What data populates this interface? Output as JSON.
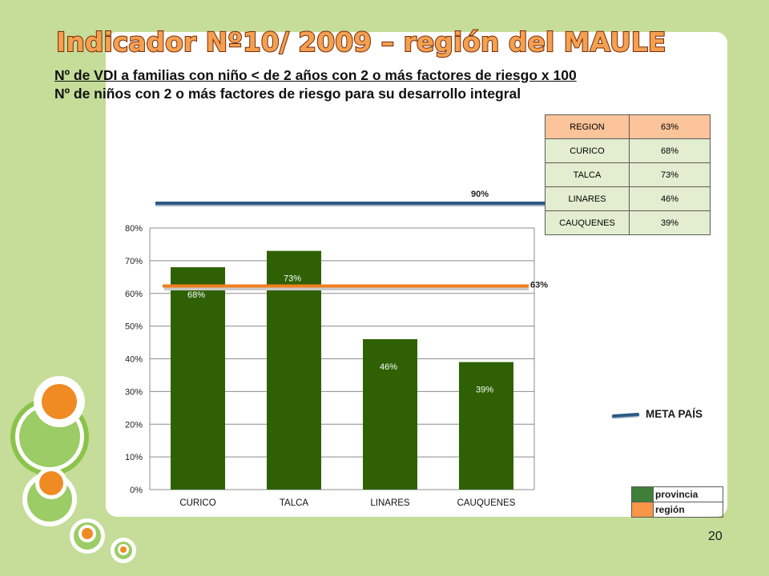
{
  "slide": {
    "title": "Indicador Nº10/ 2009 – región del MAULE",
    "subtitle_line1": "Nº de VDI a familias con niño < de 2 años con 2 o más factores de riesgo x 100",
    "subtitle_line2": "Nº de niños con 2 o más  factores de riesgo para su desarrollo integral",
    "page_number": "20"
  },
  "colors": {
    "background": "#c5dd99",
    "bar": "#2f6104",
    "region_line": "#f07f1e",
    "meta_line": "#2c5a84",
    "legend_provincia": "#3f7f3a",
    "legend_region": "#f79646",
    "title_fill": "#f3a050",
    "title_stroke": "#7a2a06"
  },
  "chart_data": {
    "type": "bar",
    "categories": [
      "CURICO",
      "TALCA",
      "LINARES",
      "CAUQUENES"
    ],
    "values": [
      68,
      73,
      46,
      39
    ],
    "value_labels": [
      "68%",
      "73%",
      "46%",
      "39%"
    ],
    "ylim": [
      0,
      80
    ],
    "yticks": [
      0,
      10,
      20,
      30,
      40,
      50,
      60,
      70,
      80
    ],
    "ytick_labels": [
      "0%",
      "10%",
      "20%",
      "30%",
      "40%",
      "50%",
      "60%",
      "70%",
      "80%"
    ],
    "grid": true,
    "region_line": {
      "value": 63,
      "label": "63%"
    },
    "meta_line": {
      "value": 90,
      "label": "90%"
    }
  },
  "region_table": {
    "rows": [
      {
        "name": "REGION",
        "value": "63%"
      },
      {
        "name": "CURICO",
        "value": "68%"
      },
      {
        "name": "TALCA",
        "value": "73%"
      },
      {
        "name": "LINARES",
        "value": "46%"
      },
      {
        "name": "CAUQUENES",
        "value": "39%"
      }
    ]
  },
  "meta_legend": {
    "label": "META PAÍS"
  },
  "legend": {
    "items": [
      {
        "label": "provincia"
      },
      {
        "label": "región"
      }
    ]
  }
}
